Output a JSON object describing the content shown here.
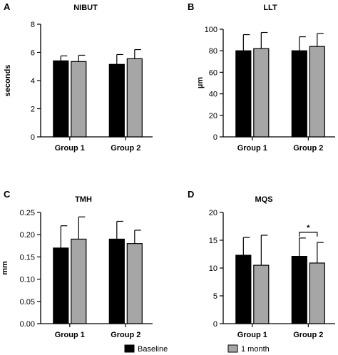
{
  "legend": {
    "baseline_label": "Baseline",
    "month_label": "1 month"
  },
  "colors": {
    "baseline": "#000000",
    "month": "#a6a6a6",
    "edge": "#000000"
  },
  "chart_data": [
    {
      "type": "bar",
      "panel": "A",
      "title": "NIBUT",
      "ylabel": "seconds",
      "xlabel": "",
      "categories": [
        "Group 1",
        "Group 2"
      ],
      "ylim": [
        0,
        8
      ],
      "yticks": [
        0,
        2,
        4,
        6,
        8
      ],
      "ytick_labels": [
        "0",
        "2",
        "4",
        "6",
        "8"
      ],
      "series": [
        {
          "name": "Baseline",
          "values": [
            5.4,
            5.15
          ],
          "errors": [
            0.35,
            0.7
          ]
        },
        {
          "name": "1 month",
          "values": [
            5.35,
            5.55
          ],
          "errors": [
            0.45,
            0.65
          ]
        }
      ],
      "annotations": []
    },
    {
      "type": "bar",
      "panel": "B",
      "title": "LLT",
      "ylabel": "µm",
      "xlabel": "",
      "categories": [
        "Group 1",
        "Group 2"
      ],
      "ylim": [
        0,
        100
      ],
      "yticks": [
        0,
        20,
        40,
        60,
        80,
        100
      ],
      "ytick_labels": [
        "0",
        "20",
        "40",
        "60",
        "80",
        "100"
      ],
      "series": [
        {
          "name": "Baseline",
          "values": [
            80,
            80
          ],
          "errors": [
            15,
            13
          ]
        },
        {
          "name": "1 month",
          "values": [
            82,
            84
          ],
          "errors": [
            15,
            12
          ]
        }
      ],
      "annotations": []
    },
    {
      "type": "bar",
      "panel": "C",
      "title": "TMH",
      "ylabel": "mm",
      "xlabel": "",
      "categories": [
        "Group 1",
        "Group 2"
      ],
      "ylim": [
        0,
        0.25
      ],
      "yticks": [
        0,
        0.05,
        0.1,
        0.15,
        0.2,
        0.25
      ],
      "ytick_labels": [
        "0.00",
        "0.05",
        "0.10",
        "0.15",
        "0.20",
        "0.25"
      ],
      "series": [
        {
          "name": "Baseline",
          "values": [
            0.17,
            0.19
          ],
          "errors": [
            0.05,
            0.04
          ]
        },
        {
          "name": "1 month",
          "values": [
            0.19,
            0.18
          ],
          "errors": [
            0.05,
            0.03
          ]
        }
      ],
      "annotations": []
    },
    {
      "type": "bar",
      "panel": "D",
      "title": "MQS",
      "ylabel": "",
      "xlabel": "",
      "categories": [
        "Group 1",
        "Group 2"
      ],
      "ylim": [
        0,
        20
      ],
      "yticks": [
        0,
        5,
        10,
        15,
        20
      ],
      "ytick_labels": [
        "0",
        "5",
        "10",
        "15",
        "20"
      ],
      "series": [
        {
          "name": "Baseline",
          "values": [
            12.3,
            12.1
          ],
          "errors": [
            3.2,
            3.3
          ]
        },
        {
          "name": "1 month",
          "values": [
            10.5,
            10.9
          ],
          "errors": [
            5.4,
            3.7
          ]
        }
      ],
      "annotations": [
        {
          "text": "*",
          "category": "Group 2"
        }
      ]
    }
  ]
}
